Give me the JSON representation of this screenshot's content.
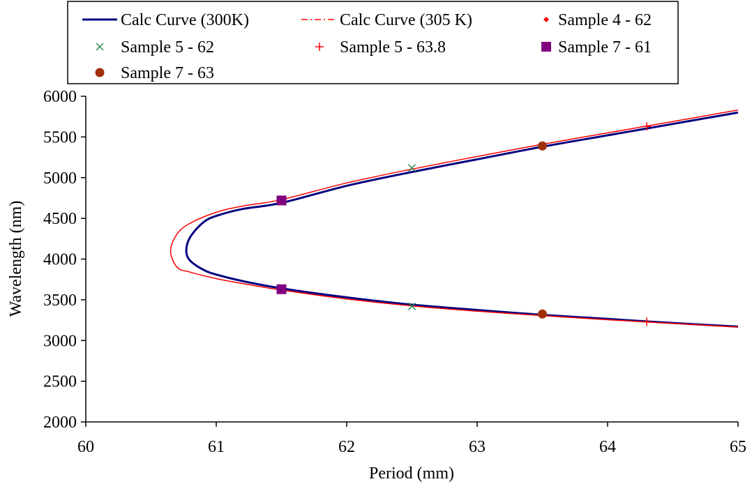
{
  "chart_data": {
    "type": "scatter",
    "xlabel": "Period (mm)",
    "ylabel": "Wavelength (nm)",
    "xlim": [
      60,
      65
    ],
    "ylim": [
      2000,
      6000
    ],
    "x_ticks": [
      60,
      61,
      62,
      63,
      64,
      65
    ],
    "y_ticks": [
      2000,
      2500,
      3000,
      3500,
      4000,
      4500,
      5000,
      5500,
      6000
    ],
    "grid": false,
    "legend_position": "top",
    "series": [
      {
        "name": "Calc Curve (300K)",
        "kind": "curve",
        "color": "#000080",
        "line_style": "solid",
        "vertex_x": 60.77,
        "vertex_y": 4100,
        "branches": [
          {
            "x": [
              60.77,
              60.8,
              60.9,
              61.0,
              61.2,
              61.5,
              62.0,
              62.5,
              63.0,
              63.5,
              64.0,
              64.5,
              65.0
            ],
            "y": [
              4100,
              4270,
              4450,
              4530,
              4615,
              4690,
              4900,
              5070,
              5225,
              5380,
              5520,
              5660,
              5800
            ]
          },
          {
            "x": [
              60.77,
              60.8,
              60.9,
              61.0,
              61.2,
              61.5,
              62.0,
              62.5,
              63.0,
              63.5,
              64.0,
              64.5,
              65.0
            ],
            "y": [
              4100,
              3980,
              3870,
              3810,
              3730,
              3640,
              3530,
              3440,
              3375,
              3315,
              3265,
              3215,
              3170
            ]
          }
        ]
      },
      {
        "name": "Calc Curve (305 K)",
        "kind": "curve",
        "color": "#ff0000",
        "line_style": "dash-dot",
        "vertex_x": 60.65,
        "vertex_y": 4100,
        "branches": [
          {
            "x": [
              60.65,
              60.7,
              60.8,
              61.0,
              61.2,
              61.5,
              62.0,
              62.5,
              63.0,
              63.5,
              64.0,
              64.5,
              65.0
            ],
            "y": [
              4100,
              4310,
              4440,
              4575,
              4650,
              4730,
              4935,
              5105,
              5260,
              5410,
              5550,
              5690,
              5830
            ]
          },
          {
            "x": [
              60.65,
              60.7,
              60.8,
              61.0,
              61.2,
              61.5,
              62.0,
              62.5,
              63.0,
              63.5,
              64.0,
              64.5,
              65.0
            ],
            "y": [
              4100,
              3900,
              3840,
              3760,
              3700,
              3620,
              3510,
              3425,
              3360,
              3305,
              3255,
              3210,
              3165
            ]
          }
        ]
      },
      {
        "name": "Sample 4 - 62",
        "kind": "points",
        "marker": "diamond",
        "color": "#ff0000",
        "x": [],
        "y": []
      },
      {
        "name": "Sample 5 - 62",
        "kind": "points",
        "marker": "x",
        "color": "#2e8b57",
        "x": [
          62.5,
          62.5
        ],
        "y": [
          5120,
          3420
        ]
      },
      {
        "name": "Sample 5 - 63.8",
        "kind": "points",
        "marker": "plus",
        "color": "#ff0000",
        "x": [
          64.3,
          64.3
        ],
        "y": [
          5630,
          3230
        ]
      },
      {
        "name": "Sample 7 - 61",
        "kind": "points",
        "marker": "square",
        "color": "#800080",
        "x": [
          61.5,
          61.5
        ],
        "y": [
          4720,
          3630
        ]
      },
      {
        "name": "Sample 7 - 63",
        "kind": "points",
        "marker": "circle",
        "color": "#a0300a",
        "x": [
          63.5,
          63.5
        ],
        "y": [
          5390,
          3325
        ]
      }
    ]
  }
}
